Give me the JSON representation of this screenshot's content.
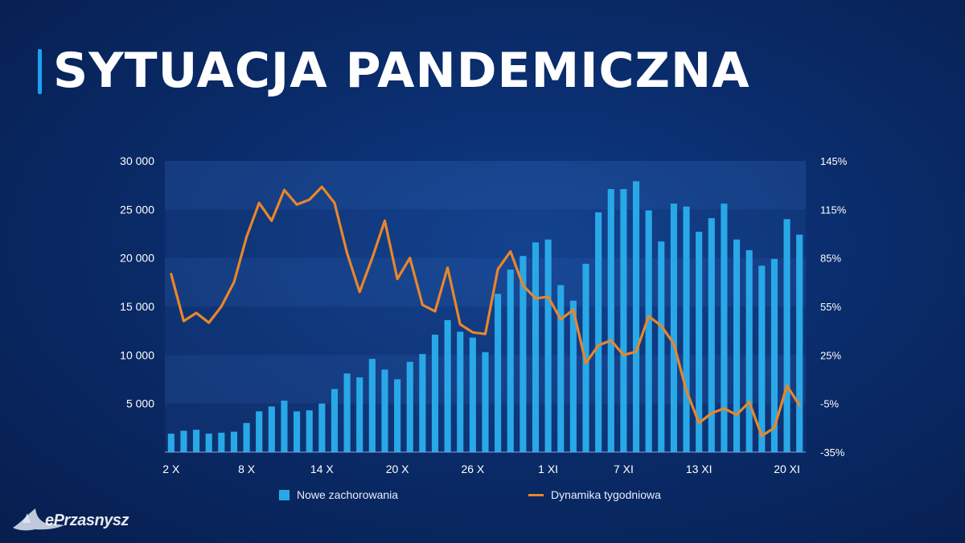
{
  "title": "SYTUACJA PANDEMICZNA",
  "logo_text": "ePrzasnysz",
  "chart_data": {
    "type": "bar+line",
    "x_tick_labels": [
      "2 X",
      "8 X",
      "14 X",
      "20 X",
      "26 X",
      "1 XI",
      "7 XI",
      "13 XI",
      "20 XI"
    ],
    "x_tick_indices": [
      0,
      6,
      12,
      18,
      24,
      30,
      36,
      42,
      49
    ],
    "left_axis": {
      "ticks": [
        5000,
        10000,
        15000,
        20000,
        25000,
        30000
      ],
      "tick_labels": [
        "5 000",
        "10 000",
        "15 000",
        "20 000",
        "25 000",
        "30 000"
      ],
      "range": [
        0,
        30000
      ]
    },
    "right_axis": {
      "ticks": [
        -35,
        -5,
        25,
        55,
        85,
        115,
        145
      ],
      "tick_labels": [
        "-35%",
        "-5%",
        "25%",
        "55%",
        "85%",
        "115%",
        "145%"
      ],
      "range": [
        -35,
        145
      ]
    },
    "series": [
      {
        "name": "Nowe zachorowania",
        "type": "bar",
        "color": "#29a8e8",
        "axis": "left",
        "values": [
          1900,
          2200,
          2300,
          1900,
          2000,
          2100,
          3000,
          4200,
          4700,
          5300,
          4200,
          4300,
          5000,
          6500,
          8100,
          7700,
          9600,
          8500,
          7500,
          9300,
          10100,
          12100,
          13600,
          12400,
          11800,
          10300,
          16300,
          18800,
          20200,
          21600,
          21900,
          17200,
          15600,
          19400,
          24700,
          27100,
          27100,
          27900,
          24900,
          21700,
          25600,
          25300,
          22700,
          24100,
          25600,
          21900,
          20800,
          19200,
          19900,
          24000,
          22400
        ]
      },
      {
        "name": "Dynamika tygodniowa",
        "type": "line",
        "color": "#e8862a",
        "axis": "right",
        "values": [
          75,
          46,
          51,
          45,
          55,
          70,
          98,
          119,
          108,
          127,
          118,
          121,
          129,
          119,
          88,
          64,
          85,
          108,
          72,
          85,
          56,
          52,
          79,
          44,
          39,
          38,
          78,
          89,
          68,
          60,
          61,
          47,
          53,
          20,
          31,
          34,
          25,
          27,
          49,
          43,
          32,
          3,
          -17,
          -11,
          -8,
          -12,
          -4,
          -25,
          -20,
          6,
          -6
        ]
      }
    ],
    "legend": {
      "position": "bottom",
      "entries": [
        "Nowe zachorowania",
        "Dynamika tygodniowa"
      ]
    }
  }
}
